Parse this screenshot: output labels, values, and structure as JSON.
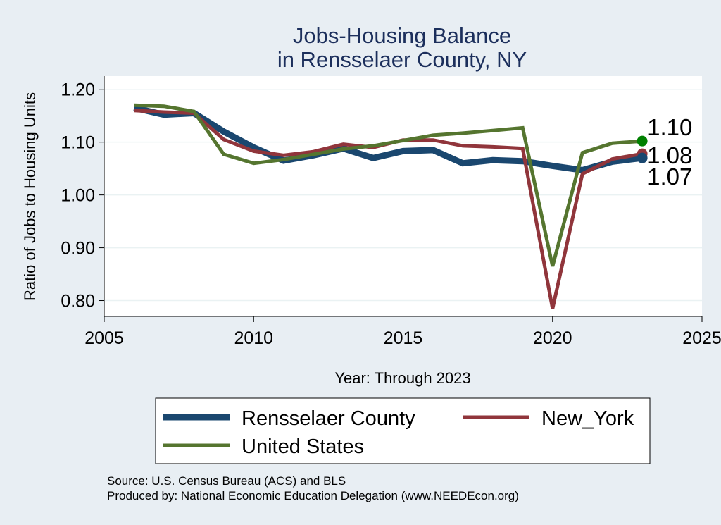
{
  "chart_data": {
    "type": "line",
    "title": "Jobs-Housing Balance",
    "subtitle": "in Rensselaer County, NY",
    "xlabel": "Year: Through 2023",
    "ylabel": "Ratio of Jobs to Housing Units",
    "xlim": [
      2005,
      2025
    ],
    "ylim": [
      0.77,
      1.225
    ],
    "xticks": [
      2005,
      2010,
      2015,
      2020,
      2025
    ],
    "xtick_labels": [
      "2005",
      "2010",
      "2015",
      "2020",
      "2025"
    ],
    "yticks": [
      0.8,
      0.9,
      1.0,
      1.1,
      1.2
    ],
    "ytick_labels": [
      "0.80",
      "0.90",
      "1.00",
      "1.10",
      "1.20"
    ],
    "grid": true,
    "legend_position": "bottom",
    "x": [
      2006,
      2007,
      2008,
      2009,
      2010,
      2011,
      2012,
      2013,
      2014,
      2015,
      2016,
      2017,
      2018,
      2019,
      2020,
      2021,
      2022,
      2023
    ],
    "series": [
      {
        "name": "Rensselaer County",
        "color": "#1a476f",
        "values": [
          1.165,
          1.152,
          1.155,
          1.12,
          1.09,
          1.065,
          1.075,
          1.088,
          1.07,
          1.083,
          1.085,
          1.06,
          1.066,
          1.064,
          1.055,
          1.047,
          1.063,
          1.07
        ],
        "end_label": "1.07"
      },
      {
        "name": "New_York",
        "color": "#90353b",
        "values": [
          1.16,
          1.157,
          1.155,
          1.105,
          1.083,
          1.075,
          1.082,
          1.096,
          1.09,
          1.104,
          1.104,
          1.093,
          1.091,
          1.088,
          0.785,
          1.04,
          1.068,
          1.078
        ],
        "end_label": "1.08"
      },
      {
        "name": "United States",
        "color": "#55752f",
        "values": [
          1.17,
          1.168,
          1.158,
          1.077,
          1.06,
          1.067,
          1.077,
          1.087,
          1.093,
          1.103,
          1.113,
          1.117,
          1.122,
          1.127,
          0.865,
          1.08,
          1.098,
          1.102
        ],
        "end_label": "1.10"
      }
    ],
    "legend": [
      {
        "label": "Rensselaer County",
        "color": "#1a476f"
      },
      {
        "label": "New_York",
        "color": "#90353b"
      },
      {
        "label": "United States",
        "color": "#55752f"
      }
    ],
    "end_markers": [
      {
        "series": "United States",
        "color": "#008000"
      },
      {
        "series": "New_York",
        "color": "#90353b"
      },
      {
        "series": "Rensselaer County",
        "color": "#1a476f"
      }
    ],
    "notes": [
      "Source: U.S. Census Bureau (ACS) and BLS",
      "Produced by: National Economic Education Delegation (www.NEEDEcon.org)"
    ]
  }
}
